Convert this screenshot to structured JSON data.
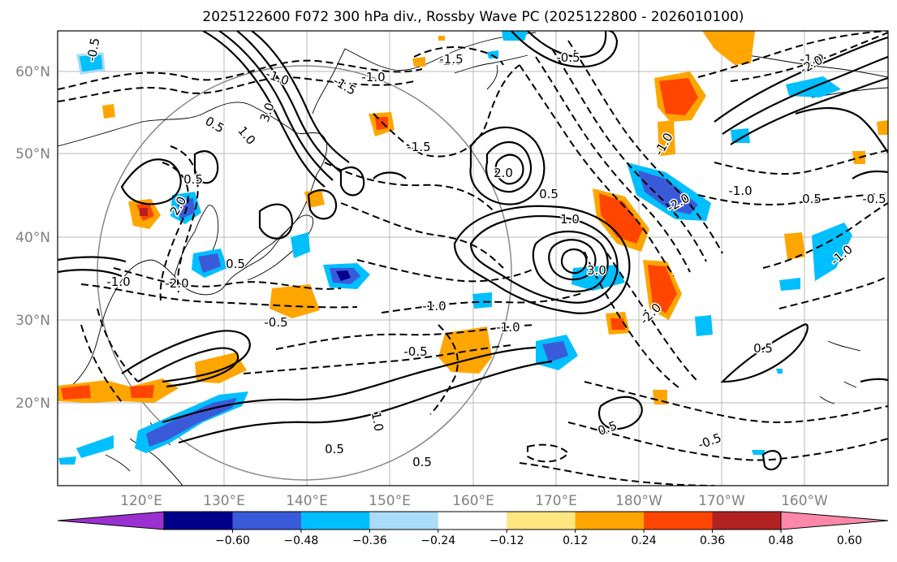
{
  "title": "2025122600 F072 300 hPa div., Rossby Wave PC (2025122800 - 2026010100)",
  "lon_labels": [
    "120°E",
    "130°E",
    "140°E",
    "150°E",
    "160°E",
    "170°E",
    "180°W",
    "170°W",
    "160°W"
  ],
  "lat_labels": [
    "60°N",
    "50°N",
    "40°N",
    "30°N",
    "20°N"
  ],
  "colorbar": {
    "ticks": [
      "−0.60",
      "−0.48",
      "−0.36",
      "−0.24",
      "−0.12",
      "0.12",
      "0.24",
      "0.36",
      "0.48",
      "0.60"
    ],
    "colors": [
      "#9b30d0",
      "#00008b",
      "#3a5bd9",
      "#00bfff",
      "#aadcf7",
      "#ffffff",
      "#ffe680",
      "#ffa500",
      "#ff4500",
      "#b22222",
      "#ff88aa"
    ]
  },
  "contour_labels": [
    {
      "text": "3.0",
      "c": "pos"
    },
    {
      "text": "-0.5",
      "c": "neg"
    },
    {
      "text": "-1.0",
      "c": "neg"
    },
    {
      "text": "-1.5",
      "c": "neg"
    },
    {
      "text": "-2.0",
      "c": "neg"
    },
    {
      "text": "0.5",
      "c": "pos"
    },
    {
      "text": "1.0",
      "c": "pos"
    },
    {
      "text": "-1.5",
      "c": "neg"
    },
    {
      "text": "-1.5",
      "c": "neg"
    },
    {
      "text": "0.5",
      "c": "pos"
    },
    {
      "text": "2.0",
      "c": "pos"
    },
    {
      "text": "-2.0",
      "c": "neg"
    },
    {
      "text": "0.5",
      "c": "pos"
    },
    {
      "text": "-1.0",
      "c": "neg"
    },
    {
      "text": "-0.5",
      "c": "neg"
    },
    {
      "text": "2.0",
      "c": "pos"
    },
    {
      "text": "-1.0",
      "c": "neg"
    },
    {
      "text": "3.0",
      "c": "pos"
    },
    {
      "text": "-1.0",
      "c": "neg"
    },
    {
      "text": "-0.5",
      "c": "neg"
    },
    {
      "text": "-1.0",
      "c": "neg"
    },
    {
      "text": "0.5",
      "c": "pos"
    },
    {
      "text": "-1.0",
      "c": "neg"
    },
    {
      "text": "-0.5",
      "c": "neg"
    },
    {
      "text": "1.0",
      "c": "pos"
    },
    {
      "text": "0.5",
      "c": "pos"
    },
    {
      "text": "-0.5",
      "c": "neg"
    },
    {
      "text": "0.5",
      "c": "pos"
    },
    {
      "text": "-2.0",
      "c": "neg"
    },
    {
      "text": "-1.0",
      "c": "neg"
    },
    {
      "text": "0.5",
      "c": "pos"
    },
    {
      "text": "-0.5",
      "c": "neg"
    },
    {
      "text": "0.5",
      "c": "pos"
    },
    {
      "text": "-1.0",
      "c": "neg"
    },
    {
      "text": "1.0",
      "c": "pos"
    },
    {
      "text": "-2.0",
      "c": "neg"
    },
    {
      "text": "0.5",
      "c": "pos"
    },
    {
      "text": "-1.0",
      "c": "neg"
    },
    {
      "text": "-2.0",
      "c": "neg"
    }
  ]
}
